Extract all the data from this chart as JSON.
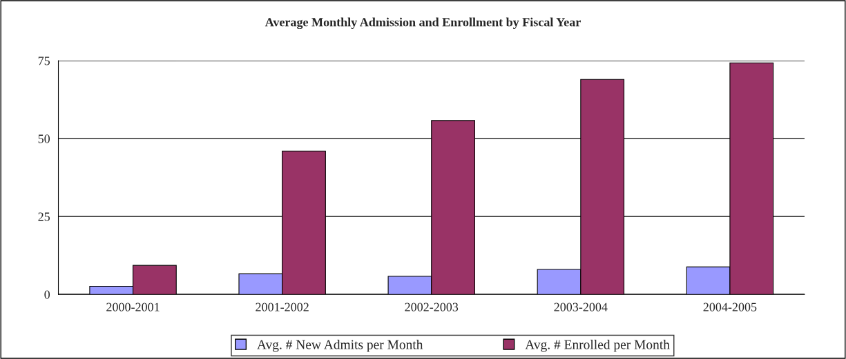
{
  "chart_data": {
    "type": "bar",
    "title": "Average Monthly Admission and Enrollment by Fiscal Year",
    "categories": [
      "2000-2001",
      "2001-2002",
      "2002-2003",
      "2003-2004",
      "2004-2005"
    ],
    "series": [
      {
        "name": "Avg. # New Admits per Month",
        "color": "#9999ff",
        "values": [
          2.6,
          6.6,
          5.8,
          8.0,
          8.8
        ]
      },
      {
        "name": "Avg. # Enrolled per Month",
        "color": "#993366",
        "values": [
          9.3,
          46,
          55.8,
          69,
          74.3
        ]
      }
    ],
    "ylim": [
      0,
      75
    ],
    "yticks": [
      0,
      25,
      50,
      75
    ],
    "grid": "y",
    "legend": "bottom"
  }
}
